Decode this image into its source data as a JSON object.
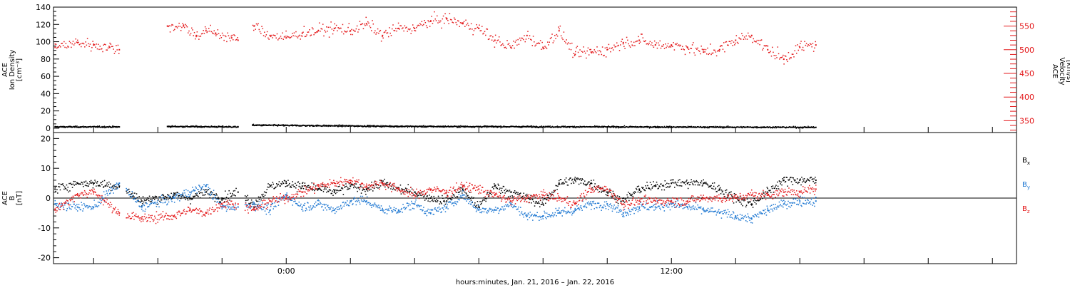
{
  "colors": {
    "black": "#000000",
    "red": "#e41a1c",
    "blue": "#1f78d2"
  },
  "panels": {
    "top": {
      "left_axis": {
        "label_lines": [
          "ACE",
          "Ion Density",
          "[cm⁻³]"
        ],
        "ylim": [
          -5,
          140
        ],
        "ticks": [
          0,
          20,
          40,
          60,
          80,
          100,
          120,
          140
        ]
      },
      "right_axis": {
        "label_lines": [
          "ACE",
          "Velocity",
          "[km/s]"
        ],
        "ylim": [
          325,
          590
        ],
        "ticks": [
          350,
          400,
          450,
          500,
          550
        ]
      }
    },
    "bottom": {
      "left_axis": {
        "label_lines": [
          "ACE",
          "B",
          "[nT]"
        ],
        "ylim": [
          -22,
          22
        ],
        "ticks": [
          -20,
          -10,
          0,
          10,
          20
        ]
      },
      "legend": [
        {
          "base": "B",
          "sub": "x",
          "color": "#000000"
        },
        {
          "base": "B",
          "sub": "y",
          "color": "#1f78d2"
        },
        {
          "base": "B",
          "sub": "z",
          "color": "#e41a1c"
        }
      ]
    }
  },
  "x_axis": {
    "label": "hours:minutes, Jan. 21, 2016 – Jan. 22, 2016",
    "range_hours": [
      -7.25,
      22.75
    ],
    "tick_labels": [
      {
        "hour": 0,
        "text": "0:00"
      },
      {
        "hour": 12,
        "text": "12:00"
      }
    ],
    "major_ticks_hours": [
      -6,
      -4,
      -2,
      0,
      2,
      4,
      6,
      8,
      10,
      12,
      14,
      16,
      18,
      20,
      22
    ]
  },
  "chart_data": {
    "type": "scatter",
    "x_unit": "hours relative to 0:00 Jan. 22, 2016",
    "panels": [
      {
        "name": "top",
        "series": [
          {
            "name": "Ion Density",
            "axis": "left",
            "color": "#000000",
            "x": [
              -7.2,
              -5.2,
              -3.7,
              -1.5,
              -1.05,
              4.0,
              10.0,
              16.5
            ],
            "y": [
              1.5,
              1.5,
              2.0,
              1.5,
              3.5,
              2.0,
              1.5,
              1.0
            ],
            "gaps": [
              [
                -5.2,
                -3.7
              ],
              [
                -1.5,
                -1.05
              ]
            ]
          },
          {
            "name": "Velocity",
            "axis": "right",
            "color": "#e41a1c",
            "x": [
              -7.2,
              -6.5,
              -6.0,
              -5.5,
              -5.2,
              -3.7,
              -3.2,
              -2.8,
              -2.5,
              -2.2,
              -1.7,
              -1.5,
              -1.0,
              -0.5,
              0.0,
              0.5,
              1.0,
              1.5,
              2.0,
              2.5,
              3.0,
              3.5,
              4.0,
              4.5,
              5.0,
              5.5,
              6.0,
              6.5,
              7.0,
              7.5,
              8.0,
              8.5,
              9.0,
              9.5,
              10.0,
              10.5,
              11.0,
              11.5,
              12.0,
              12.5,
              13.0,
              13.5,
              14.0,
              14.5,
              15.0,
              15.5,
              16.0,
              16.5
            ],
            "y": [
              505,
              515,
              510,
              505,
              500,
              550,
              550,
              530,
              540,
              535,
              525,
              520,
              550,
              530,
              525,
              535,
              540,
              545,
              540,
              555,
              530,
              545,
              545,
              560,
              565,
              555,
              545,
              520,
              505,
              530,
              505,
              540,
              490,
              495,
              500,
              515,
              520,
              510,
              510,
              505,
              495,
              500,
              520,
              530,
              500,
              480,
              505,
              510
            ],
            "gaps": [
              [
                -5.2,
                -3.7
              ],
              [
                -1.5,
                -1.05
              ]
            ]
          }
        ]
      },
      {
        "name": "bottom",
        "series": [
          {
            "name": "Bx",
            "color": "#000000",
            "x": [
              -7.2,
              -6.5,
              -6.0,
              -5.2,
              -4.5,
              -3.5,
              -3.0,
              -2.5,
              -2.0,
              -1.5,
              -1.0,
              -0.5,
              0.0,
              0.5,
              1.0,
              1.5,
              2.0,
              2.5,
              3.0,
              3.5,
              4.0,
              4.5,
              5.0,
              5.5,
              6.0,
              6.5,
              7.0,
              7.5,
              8.0,
              8.5,
              9.0,
              9.5,
              10.0,
              10.5,
              11.0,
              11.5,
              12.0,
              12.5,
              13.0,
              13.5,
              14.0,
              14.5,
              15.0,
              15.5,
              16.0,
              16.5
            ],
            "y": [
              3,
              5,
              5,
              4,
              -1,
              1,
              0,
              2,
              0,
              2,
              -2,
              4,
              5,
              4,
              3,
              2,
              4,
              3,
              5,
              3,
              2,
              0,
              -1,
              3,
              -3,
              4,
              2,
              0,
              -2,
              5,
              6,
              5,
              2,
              -1,
              3,
              4,
              5,
              5,
              5,
              3,
              0,
              -2,
              2,
              6,
              6,
              6
            ]
          },
          {
            "name": "By",
            "color": "#1f78d2",
            "x": [
              -7.2,
              -6.5,
              -6.0,
              -5.2,
              -4.5,
              -3.5,
              -3.0,
              -2.5,
              -2.0,
              -1.5,
              -1.0,
              -0.5,
              0.0,
              0.5,
              1.0,
              1.5,
              2.0,
              2.5,
              3.0,
              3.5,
              4.0,
              4.5,
              5.0,
              5.5,
              6.0,
              6.5,
              7.0,
              7.5,
              8.0,
              8.5,
              9.0,
              9.5,
              10.0,
              10.5,
              11.0,
              11.5,
              12.0,
              12.5,
              13.0,
              13.5,
              14.0,
              14.5,
              15.0,
              15.5,
              16.0,
              16.5
            ],
            "y": [
              -2,
              -3,
              -3,
              5,
              -3,
              0,
              2,
              4,
              -3,
              -3,
              -2,
              -4,
              1,
              -3,
              -2,
              -4,
              -1,
              -1,
              -4,
              -4,
              -2,
              -5,
              -3,
              1,
              -4,
              -4,
              -2,
              -6,
              -6,
              -5,
              -4,
              -2,
              -2,
              -5,
              -3,
              -3,
              -2,
              -3,
              -4,
              -5,
              -6,
              -7,
              -4,
              -2,
              -1,
              -1
            ]
          },
          {
            "name": "Bz",
            "color": "#e41a1c",
            "x": [
              -7.2,
              -6.5,
              -6.0,
              -5.2,
              -4.5,
              -3.5,
              -3.0,
              -2.5,
              -2.0,
              -1.5,
              -1.0,
              -0.5,
              0.0,
              0.5,
              1.0,
              1.5,
              2.0,
              2.5,
              3.0,
              3.5,
              4.0,
              4.5,
              5.0,
              5.5,
              6.0,
              6.5,
              7.0,
              7.5,
              8.0,
              8.5,
              9.0,
              9.5,
              10.0,
              10.5,
              11.0,
              11.5,
              12.0,
              12.5,
              13.0,
              13.5,
              14.0,
              14.5,
              15.0,
              15.5,
              16.0,
              16.5
            ],
            "y": [
              -4,
              1,
              2,
              -5,
              -7,
              -6,
              -4,
              -5,
              -2,
              -2,
              -4,
              -1,
              0,
              2,
              4,
              5,
              6,
              4,
              5,
              3,
              1,
              3,
              2,
              4,
              3,
              1,
              -1,
              0,
              1,
              0,
              -2,
              3,
              3,
              -2,
              -1,
              -1,
              -1,
              -1,
              0,
              0,
              0,
              1,
              1,
              2,
              2,
              3
            ]
          }
        ]
      }
    ]
  }
}
